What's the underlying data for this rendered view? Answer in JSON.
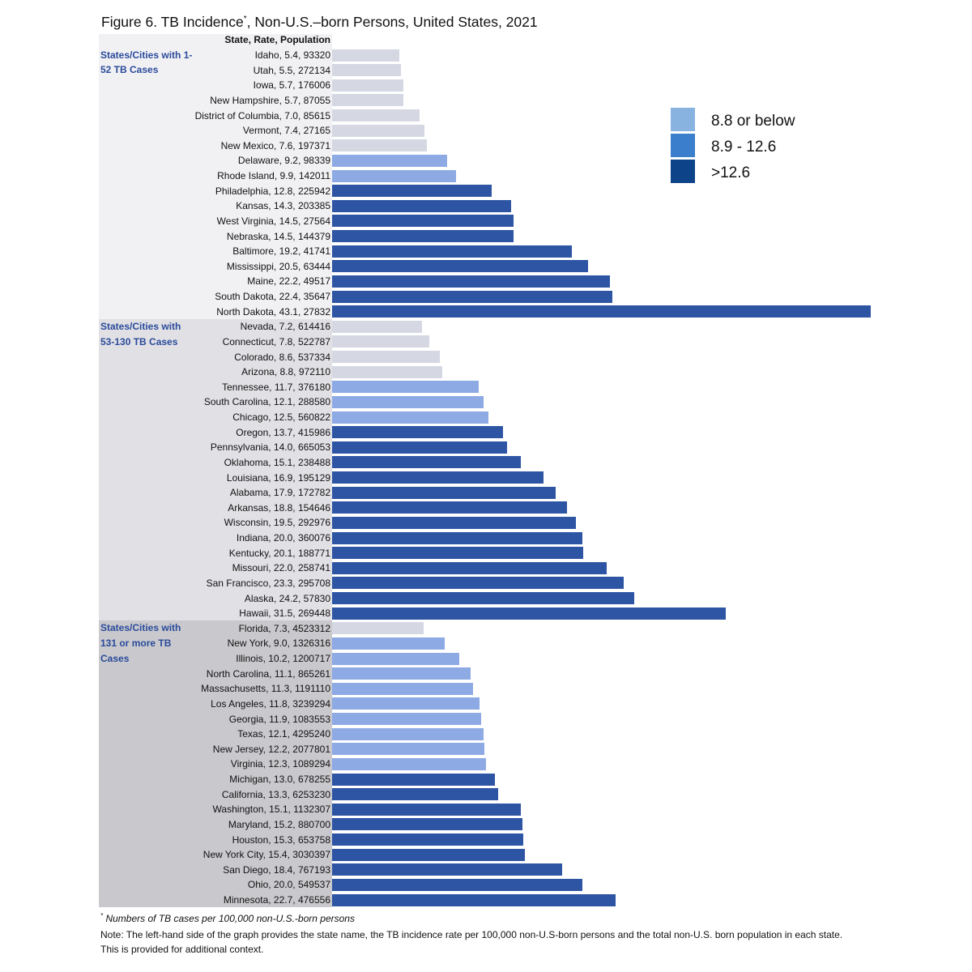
{
  "title": "Figure 6. TB Incidence",
  "title_mark": "*",
  "title_rest": ", Non-U.S.–born Persons, United States, 2021",
  "chart_data": {
    "type": "bar",
    "orientation": "horizontal",
    "column_header": "State, Rate, Population",
    "groups": [
      {
        "label": "States/Cities with 1-52 TB Cases",
        "background": "#f1f1f4",
        "rows": [
          [
            "Idaho",
            5.4,
            93320
          ],
          [
            "Utah",
            5.5,
            272134
          ],
          [
            "Iowa",
            5.7,
            176006
          ],
          [
            "New Hampshire",
            5.7,
            87055
          ],
          [
            "District of Columbia",
            7.0,
            85615
          ],
          [
            "Vermont",
            7.4,
            27165
          ],
          [
            "New Mexico",
            7.6,
            197371
          ],
          [
            "Delaware",
            9.2,
            98339
          ],
          [
            "Rhode Island",
            9.9,
            142011
          ],
          [
            "Philadelphia",
            12.8,
            225942
          ],
          [
            "Kansas",
            14.3,
            203385
          ],
          [
            "West Virginia",
            14.5,
            27564
          ],
          [
            "Nebraska",
            14.5,
            144379
          ],
          [
            "Baltimore",
            19.2,
            41741
          ],
          [
            "Mississippi",
            20.5,
            63444
          ],
          [
            "Maine",
            22.2,
            49517
          ],
          [
            "South Dakota",
            22.4,
            35647
          ],
          [
            "North Dakota",
            43.1,
            27832
          ]
        ]
      },
      {
        "label": "States/Cities with 53-130 TB Cases",
        "background": "#e1e1e5",
        "rows": [
          [
            "Nevada",
            7.2,
            614416
          ],
          [
            "Connecticut",
            7.8,
            522787
          ],
          [
            "Colorado",
            8.6,
            537334
          ],
          [
            "Arizona",
            8.8,
            972110
          ],
          [
            "Tennessee",
            11.7,
            376180
          ],
          [
            "South Carolina",
            12.1,
            288580
          ],
          [
            "Chicago",
            12.5,
            560822
          ],
          [
            "Oregon",
            13.7,
            415986
          ],
          [
            "Pennsylvania",
            14.0,
            665053
          ],
          [
            "Oklahoma",
            15.1,
            238488
          ],
          [
            "Louisiana",
            16.9,
            195129
          ],
          [
            "Alabama",
            17.9,
            172782
          ],
          [
            "Arkansas",
            18.8,
            154646
          ],
          [
            "Wisconsin",
            19.5,
            292976
          ],
          [
            "Indiana",
            20.0,
            360076
          ],
          [
            "Kentucky",
            20.1,
            188771
          ],
          [
            "Missouri",
            22.0,
            258741
          ],
          [
            "San Francisco",
            23.3,
            295708
          ],
          [
            "Alaska",
            24.2,
            57830
          ],
          [
            "Hawaii",
            31.5,
            269448
          ]
        ]
      },
      {
        "label": "States/Cities with 131 or more TB Cases",
        "background": "#c9c9cd",
        "rows": [
          [
            "Florida",
            7.3,
            4523312
          ],
          [
            "New York",
            9.0,
            1326316
          ],
          [
            "Illinois",
            10.2,
            1200717
          ],
          [
            "North Carolina",
            11.1,
            865261
          ],
          [
            "Massachusetts",
            11.3,
            1191110
          ],
          [
            "Los Angeles",
            11.8,
            3239294
          ],
          [
            "Georgia",
            11.9,
            1083553
          ],
          [
            "Texas",
            12.1,
            4295240
          ],
          [
            "New Jersey",
            12.2,
            2077801
          ],
          [
            "Virginia",
            12.3,
            1089294
          ],
          [
            "Michigan",
            13.0,
            678255
          ],
          [
            "California",
            13.3,
            6253230
          ],
          [
            "Washington",
            15.1,
            1132307
          ],
          [
            "Maryland",
            15.2,
            880700
          ],
          [
            "Houston",
            15.3,
            653758
          ],
          [
            "New York City",
            15.4,
            3030397
          ],
          [
            "San Diego",
            18.4,
            767193
          ],
          [
            "Ohio",
            20.0,
            549537
          ],
          [
            "Minnesota",
            22.7,
            476556
          ]
        ]
      }
    ],
    "bar_colors": {
      "low": "#d5d8e3",
      "mid": "#8eaae4",
      "high": "#2e55a4"
    },
    "legend": [
      {
        "label": "8.8 or below",
        "color": "#88b3e0",
        "max": 8.8
      },
      {
        "label": "8.9 - 12.6",
        "color": "#3b7fcc",
        "max": 12.6
      },
      {
        "label": ">12.6",
        "color": "#0d4388"
      }
    ],
    "legend_placement": "top-right",
    "xlim": [
      0,
      43.1
    ]
  },
  "footnote_mark": "*",
  "footnote": "Numbers of TB cases per 100,000 non-U.S.-born persons",
  "note": "Note: The left-hand side of the graph provides the state name, the TB incidence rate per 100,000 non-U.S-born persons and the total non-U.S. born population in each state. This is provided for additional context."
}
